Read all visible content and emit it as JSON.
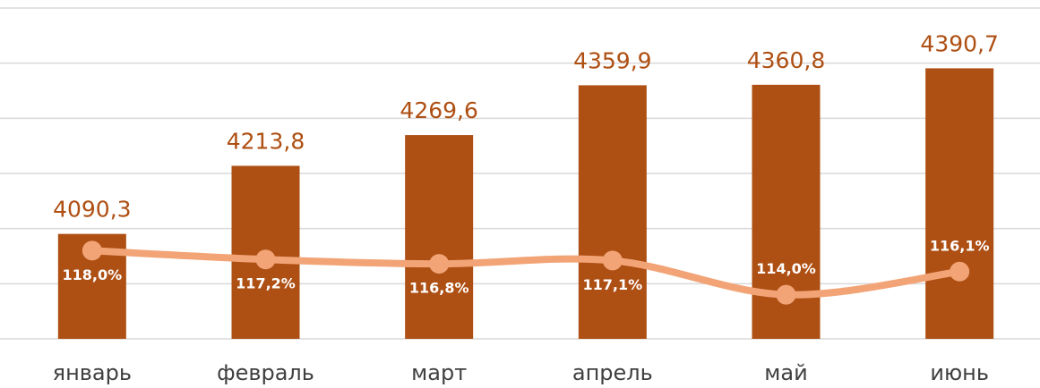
{
  "chart_data": {
    "type": "bar",
    "categories": [
      "январь",
      "февраль",
      "март",
      "апрель",
      "май",
      "июнь"
    ],
    "series": [
      {
        "type": "bar",
        "color": "#ae4f13",
        "values": [
          4090.3,
          4213.8,
          4269.6,
          4359.9,
          4360.8,
          4390.7
        ],
        "value_labels": [
          "4090,3",
          "4213,8",
          "4269,6",
          "4359,9",
          "4360,8",
          "4390,7"
        ]
      },
      {
        "type": "line",
        "axis": "y2",
        "color": "#f2a477",
        "values": [
          118.0,
          117.2,
          116.8,
          117.1,
          114.0,
          116.1
        ],
        "value_labels": [
          "118,0%",
          "117,2%",
          "116,8%",
          "117,1%",
          "114,0%",
          "116,1%"
        ]
      }
    ],
    "ylim": [
      3900,
      4500
    ],
    "yticks": [
      3900,
      4000,
      4100,
      4200,
      4300,
      4400,
      4500
    ],
    "y2lim": [
      110,
      140
    ],
    "grid": true
  }
}
